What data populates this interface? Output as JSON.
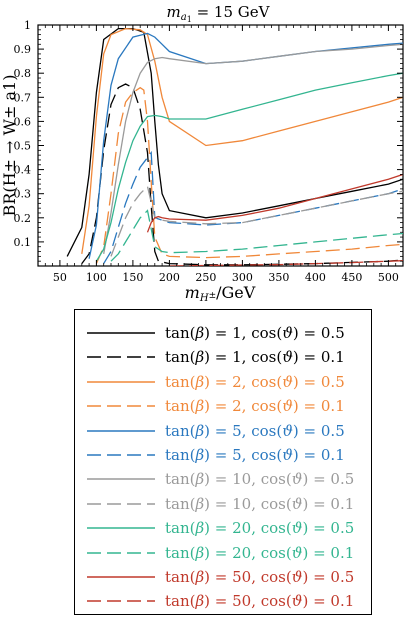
{
  "chart_data": {
    "type": "line",
    "title": "m_{a1} = 15 GeV",
    "title_parts": {
      "m": "m",
      "sub": "a",
      "subsub": "1",
      "rest": " = 15 GeV"
    },
    "xlabel": "m_{H±}/GeV",
    "xlabel_parts": {
      "m": "m",
      "sub": "H",
      "sup": "±",
      "rest": "/GeV"
    },
    "ylabel": "BR(H± → W± a1)",
    "xlim": [
      20,
      520
    ],
    "ylim": [
      0,
      1.0
    ],
    "xticks": [
      50,
      100,
      150,
      200,
      250,
      300,
      350,
      400,
      450,
      500
    ],
    "xtick_labels": [
      "50",
      "100",
      "150",
      "200",
      "250",
      "300",
      "350",
      "400",
      "450",
      "500"
    ],
    "yticks": [
      0.1,
      0.2,
      0.3,
      0.4,
      0.5,
      0.6,
      0.7,
      0.8,
      0.9,
      1
    ],
    "ytick_labels": [
      "0.1",
      "0.2",
      "0.3",
      "0.4",
      "0.5",
      "0.6",
      "0.7",
      "0.8",
      "0.9",
      "1"
    ],
    "series": [
      {
        "name": "tan(β) = 1, cos(ϑ) = 0.5",
        "color": "#000000",
        "dash": "solid",
        "x": [
          60,
          80,
          90,
          100,
          110,
          130,
          150,
          165,
          175,
          180,
          185,
          190,
          200,
          250,
          300,
          350,
          400,
          450,
          500,
          520
        ],
        "y": [
          0.04,
          0.16,
          0.38,
          0.72,
          0.94,
          0.985,
          0.985,
          0.97,
          0.8,
          0.6,
          0.42,
          0.3,
          0.23,
          0.2,
          0.22,
          0.25,
          0.28,
          0.31,
          0.34,
          0.36
        ]
      },
      {
        "name": "tan(β) = 1, cos(ϑ) = 0.1",
        "color": "#000000",
        "dash": "long",
        "x": [
          80,
          90,
          100,
          110,
          120,
          130,
          140,
          150,
          160,
          170,
          175,
          180,
          185,
          200,
          250,
          300,
          350,
          400,
          450,
          500,
          520
        ],
        "y": [
          0.01,
          0.05,
          0.2,
          0.48,
          0.67,
          0.74,
          0.755,
          0.74,
          0.65,
          0.47,
          0.25,
          0.06,
          0.02,
          0.01,
          0.005,
          0.005,
          0.007,
          0.01,
          0.015,
          0.02,
          0.025
        ]
      },
      {
        "name": "tan(β) = 2, cos(ϑ) = 0.5",
        "color": "#f0883a",
        "dash": "solid",
        "x": [
          80,
          90,
          100,
          110,
          120,
          140,
          160,
          170,
          180,
          190,
          200,
          250,
          300,
          350,
          400,
          450,
          500,
          520
        ],
        "y": [
          0.05,
          0.25,
          0.62,
          0.88,
          0.96,
          0.985,
          0.98,
          0.96,
          0.85,
          0.7,
          0.6,
          0.5,
          0.52,
          0.56,
          0.6,
          0.64,
          0.68,
          0.7
        ]
      },
      {
        "name": "tan(β) = 2, cos(ϑ) = 0.1",
        "color": "#f0883a",
        "dash": "long",
        "x": [
          100,
          110,
          120,
          130,
          140,
          150,
          160,
          165,
          170,
          175,
          180,
          190,
          200,
          250,
          300,
          350,
          400,
          450,
          500,
          520
        ],
        "y": [
          0.01,
          0.08,
          0.3,
          0.55,
          0.68,
          0.72,
          0.74,
          0.73,
          0.6,
          0.35,
          0.12,
          0.05,
          0.04,
          0.035,
          0.04,
          0.05,
          0.06,
          0.07,
          0.085,
          0.09
        ]
      },
      {
        "name": "tan(β) = 5, cos(ϑ) = 0.5",
        "color": "#2a78bf",
        "dash": "solid",
        "x": [
          90,
          100,
          110,
          120,
          130,
          150,
          170,
          180,
          190,
          200,
          250,
          300,
          350,
          400,
          450,
          500,
          520
        ],
        "y": [
          0.03,
          0.17,
          0.52,
          0.75,
          0.86,
          0.95,
          0.965,
          0.95,
          0.92,
          0.89,
          0.84,
          0.85,
          0.87,
          0.89,
          0.905,
          0.92,
          0.925
        ]
      },
      {
        "name": "tan(β) = 5, cos(ϑ) = 0.1",
        "color": "#2a78bf",
        "dash": "long",
        "x": [
          110,
          120,
          130,
          140,
          150,
          160,
          170,
          175,
          180,
          190,
          200,
          250,
          300,
          350,
          400,
          450,
          500,
          520
        ],
        "y": [
          0.01,
          0.06,
          0.16,
          0.26,
          0.34,
          0.41,
          0.45,
          0.47,
          0.2,
          0.19,
          0.18,
          0.17,
          0.18,
          0.21,
          0.24,
          0.27,
          0.3,
          0.32
        ]
      },
      {
        "name": "tan(β) = 10, cos(ϑ) = 0.5",
        "color": "#9a9a9a",
        "dash": "solid",
        "x": [
          110,
          120,
          130,
          140,
          150,
          160,
          170,
          180,
          190,
          200,
          250,
          300,
          350,
          400,
          450,
          500,
          520
        ],
        "y": [
          0.05,
          0.22,
          0.42,
          0.6,
          0.72,
          0.8,
          0.845,
          0.86,
          0.865,
          0.86,
          0.84,
          0.85,
          0.87,
          0.89,
          0.9,
          0.915,
          0.92
        ]
      },
      {
        "name": "tan(β) = 10, cos(ϑ) = 0.1",
        "color": "#9a9a9a",
        "dash": "long",
        "x": [
          120,
          130,
          140,
          150,
          160,
          170,
          180,
          190,
          200,
          250,
          300,
          350,
          400,
          450,
          500,
          520
        ],
        "y": [
          0.04,
          0.12,
          0.2,
          0.26,
          0.3,
          0.33,
          0.2,
          0.19,
          0.185,
          0.175,
          0.18,
          0.21,
          0.24,
          0.27,
          0.3,
          0.31
        ]
      },
      {
        "name": "tan(β) = 20, cos(ϑ) = 0.5",
        "color": "#33b590",
        "dash": "solid",
        "x": [
          100,
          110,
          120,
          130,
          140,
          150,
          160,
          170,
          180,
          190,
          200,
          250,
          300,
          350,
          400,
          450,
          500,
          520
        ],
        "y": [
          0.02,
          0.07,
          0.18,
          0.32,
          0.43,
          0.52,
          0.58,
          0.62,
          0.625,
          0.62,
          0.61,
          0.61,
          0.65,
          0.69,
          0.73,
          0.76,
          0.79,
          0.8
        ]
      },
      {
        "name": "tan(β) = 20, cos(ϑ) = 0.1",
        "color": "#33b590",
        "dash": "long",
        "x": [
          120,
          130,
          140,
          150,
          160,
          170,
          180,
          190,
          200,
          250,
          300,
          350,
          400,
          450,
          500,
          520
        ],
        "y": [
          0.02,
          0.05,
          0.1,
          0.15,
          0.2,
          0.23,
          0.08,
          0.06,
          0.055,
          0.06,
          0.07,
          0.085,
          0.1,
          0.115,
          0.13,
          0.135
        ]
      },
      {
        "name": "tan(β) = 50, cos(ϑ) = 0.5",
        "color": "#c0392b",
        "dash": "solid",
        "x": [
          170,
          175,
          180,
          185,
          190,
          200,
          250,
          300,
          350,
          400,
          450,
          500,
          520
        ],
        "y": [
          0.14,
          0.18,
          0.2,
          0.205,
          0.2,
          0.195,
          0.19,
          0.21,
          0.24,
          0.28,
          0.32,
          0.36,
          0.38
        ]
      },
      {
        "name": "tan(β) = 50, cos(ϑ) = 0.1",
        "color": "#c0392b",
        "dash": "long",
        "x": [
          200,
          250,
          300,
          350,
          400,
          450,
          500,
          520
        ],
        "y": [
          0.0,
          0.002,
          0.004,
          0.006,
          0.01,
          0.014,
          0.02,
          0.022
        ]
      }
    ],
    "legend": {
      "placement": "below",
      "entries": [
        {
          "tan": "1",
          "cos": "0.5"
        },
        {
          "tan": "1",
          "cos": "0.1"
        },
        {
          "tan": "2",
          "cos": "0.5"
        },
        {
          "tan": "2",
          "cos": "0.1"
        },
        {
          "tan": "5",
          "cos": "0.5"
        },
        {
          "tan": "5",
          "cos": "0.1"
        },
        {
          "tan": "10",
          "cos": "0.5"
        },
        {
          "tan": "10",
          "cos": "0.1"
        },
        {
          "tan": "20",
          "cos": "0.5"
        },
        {
          "tan": "20",
          "cos": "0.1"
        },
        {
          "tan": "50",
          "cos": "0.5"
        },
        {
          "tan": "50",
          "cos": "0.1"
        }
      ]
    },
    "grid": false
  }
}
